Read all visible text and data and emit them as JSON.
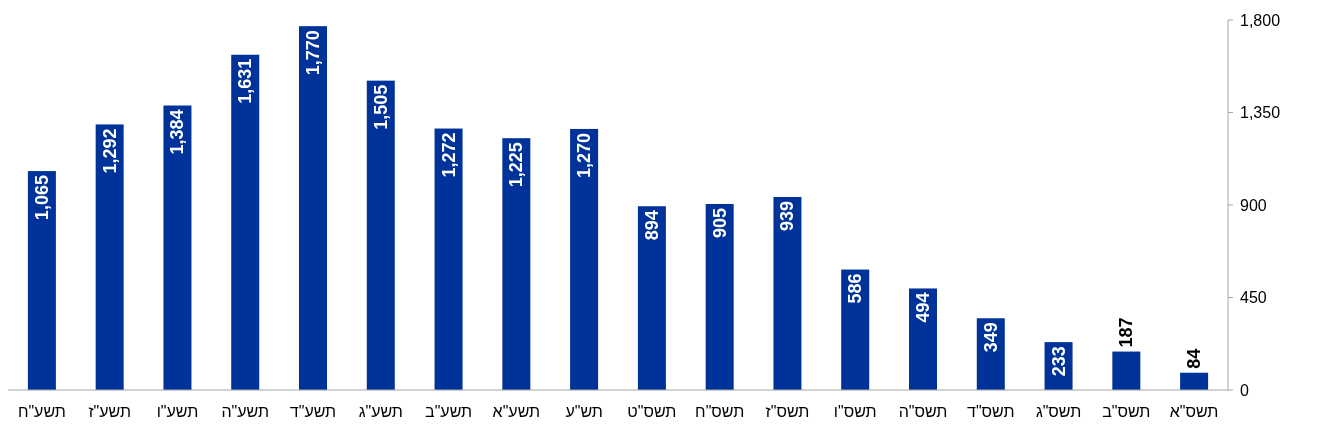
{
  "chart_data": {
    "type": "bar",
    "categories": [
      "תשע\"ח",
      "תשע\"ז",
      "תשע\"ו",
      "תשע\"ה",
      "תשע\"ד",
      "תשע\"ג",
      "תשע\"ב",
      "תשע\"א",
      "תש\"ע",
      "תשס\"ט",
      "תשס\"ח",
      "תשס\"ז",
      "תשס\"ו",
      "תשס\"ה",
      "תשס\"ד",
      "תשס\"ג",
      "תשס\"ב",
      "תשס\"א"
    ],
    "values": [
      1065,
      1292,
      1384,
      1631,
      1770,
      1505,
      1272,
      1225,
      1270,
      894,
      905,
      939,
      586,
      494,
      349,
      233,
      187,
      84
    ],
    "value_labels": [
      "1,065",
      "1,292",
      "1,384",
      "1,631",
      "1,770",
      "1,505",
      "1,272",
      "1,225",
      "1,270",
      "894",
      "905",
      "939",
      "586",
      "494",
      "349",
      "233",
      "187",
      "84"
    ],
    "color": "#003399",
    "ylim": [
      0,
      1800
    ],
    "yticks": [
      {
        "value": 0,
        "label": "0"
      },
      {
        "value": 450,
        "label": "450"
      },
      {
        "value": 900,
        "label": "900"
      },
      {
        "value": 1350,
        "label": "1,350"
      },
      {
        "value": 1800,
        "label": "1,800"
      }
    ]
  }
}
